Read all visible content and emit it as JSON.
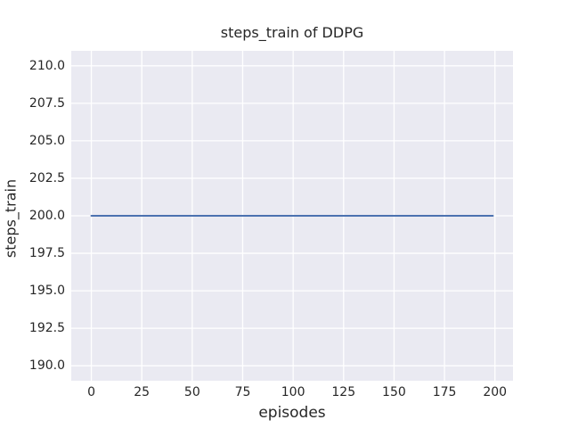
{
  "chart_data": {
    "type": "line",
    "title": "steps_train of DDPG",
    "xlabel": "episodes",
    "ylabel": "steps_train",
    "xlim": [
      -9.95,
      208.95
    ],
    "ylim": [
      189.0,
      211.0
    ],
    "x_ticks": [
      0,
      25,
      50,
      75,
      100,
      125,
      150,
      175,
      200
    ],
    "x_tick_labels": [
      "0",
      "25",
      "50",
      "75",
      "100",
      "125",
      "150",
      "175",
      "200"
    ],
    "y_ticks": [
      190.0,
      192.5,
      195.0,
      197.5,
      200.0,
      202.5,
      205.0,
      207.5,
      210.0
    ],
    "y_tick_labels": [
      "190.0",
      "192.5",
      "195.0",
      "197.5",
      "200.0",
      "202.5",
      "205.0",
      "207.5",
      "210.0"
    ],
    "grid": true,
    "legend": null,
    "series": [
      {
        "name": "steps_train",
        "color": "#4C72B0",
        "x": [
          0,
          199
        ],
        "y": [
          200,
          200
        ]
      }
    ],
    "style": {
      "figure_background": "#FFFFFF",
      "axes_background": "#EAEAF2",
      "grid_color": "#FFFFFF",
      "text_color": "#262626",
      "line_width": 2
    }
  }
}
